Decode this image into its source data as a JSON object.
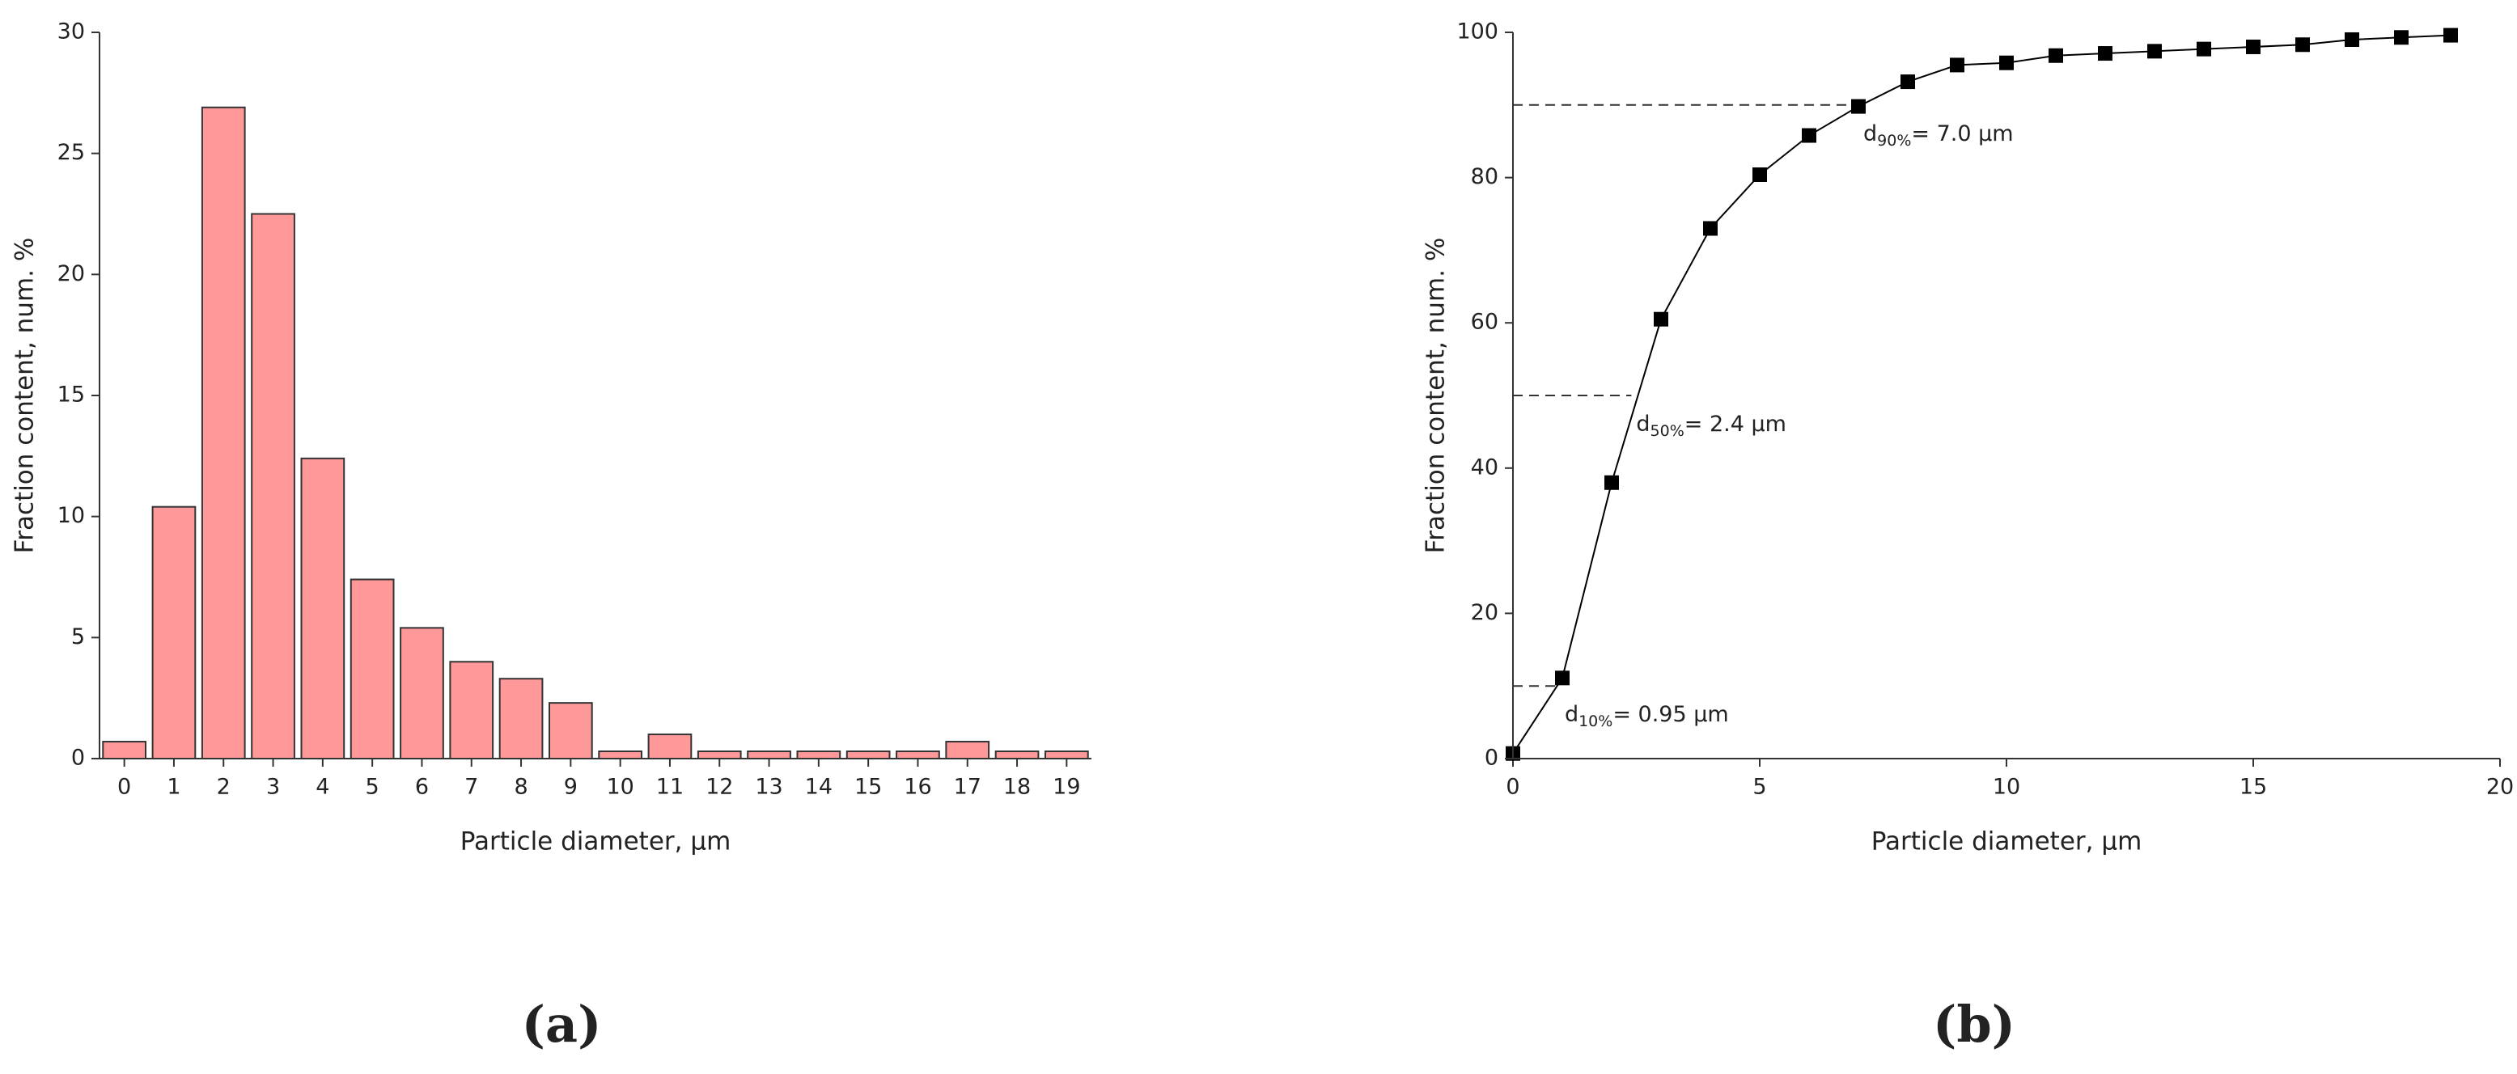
{
  "chart_data": [
    {
      "type": "bar",
      "panel": "(a)",
      "xlabel": "Particle diameter, μm",
      "ylabel": "Fraction content, num. %",
      "categories": [
        "0",
        "1",
        "2",
        "3",
        "4",
        "5",
        "6",
        "7",
        "8",
        "9",
        "10",
        "11",
        "12",
        "13",
        "14",
        "15",
        "16",
        "17",
        "18",
        "19"
      ],
      "values": [
        0.7,
        10.4,
        26.9,
        22.5,
        12.4,
        7.4,
        5.4,
        4.0,
        3.3,
        2.3,
        0.3,
        1.0,
        0.3,
        0.3,
        0.3,
        0.3,
        0.3,
        0.7,
        0.3,
        0.3
      ],
      "color": "#ff9999",
      "ylim": [
        0,
        30
      ],
      "yticks": [
        0,
        5,
        10,
        15,
        20,
        25,
        30
      ]
    },
    {
      "type": "line",
      "panel": "(b)",
      "xlabel": "Particle diameter, μm",
      "ylabel": "Fraction content, num. %",
      "x": [
        0,
        1,
        2,
        3,
        4,
        5,
        6,
        7,
        8,
        9,
        10,
        11,
        12,
        13,
        14,
        15,
        16,
        17,
        18,
        19
      ],
      "series": [
        {
          "color": "#000000",
          "values": [
            0.7,
            11.1,
            38.0,
            60.5,
            73.0,
            80.4,
            85.8,
            89.8,
            93.2,
            95.5,
            95.8,
            96.8,
            97.1,
            97.4,
            97.7,
            98.0,
            98.3,
            99.0,
            99.3,
            99.6
          ]
        }
      ],
      "xlim": [
        0,
        20
      ],
      "xticks": [
        0,
        5,
        10,
        15,
        20
      ],
      "ylim": [
        0,
        100
      ],
      "yticks": [
        0,
        20,
        40,
        60,
        80,
        100
      ],
      "reference_lines": [
        {
          "y": 10,
          "x": 0.95,
          "label": "d",
          "sub": "10%",
          "rest": "= 0.95 μm"
        },
        {
          "y": 50,
          "x": 2.4,
          "label": "d",
          "sub": "50%",
          "rest": "= 2.4 μm"
        },
        {
          "y": 90,
          "x": 7.0,
          "label": "d",
          "sub": "90%",
          "rest": "= 7.0 μm"
        }
      ]
    }
  ]
}
